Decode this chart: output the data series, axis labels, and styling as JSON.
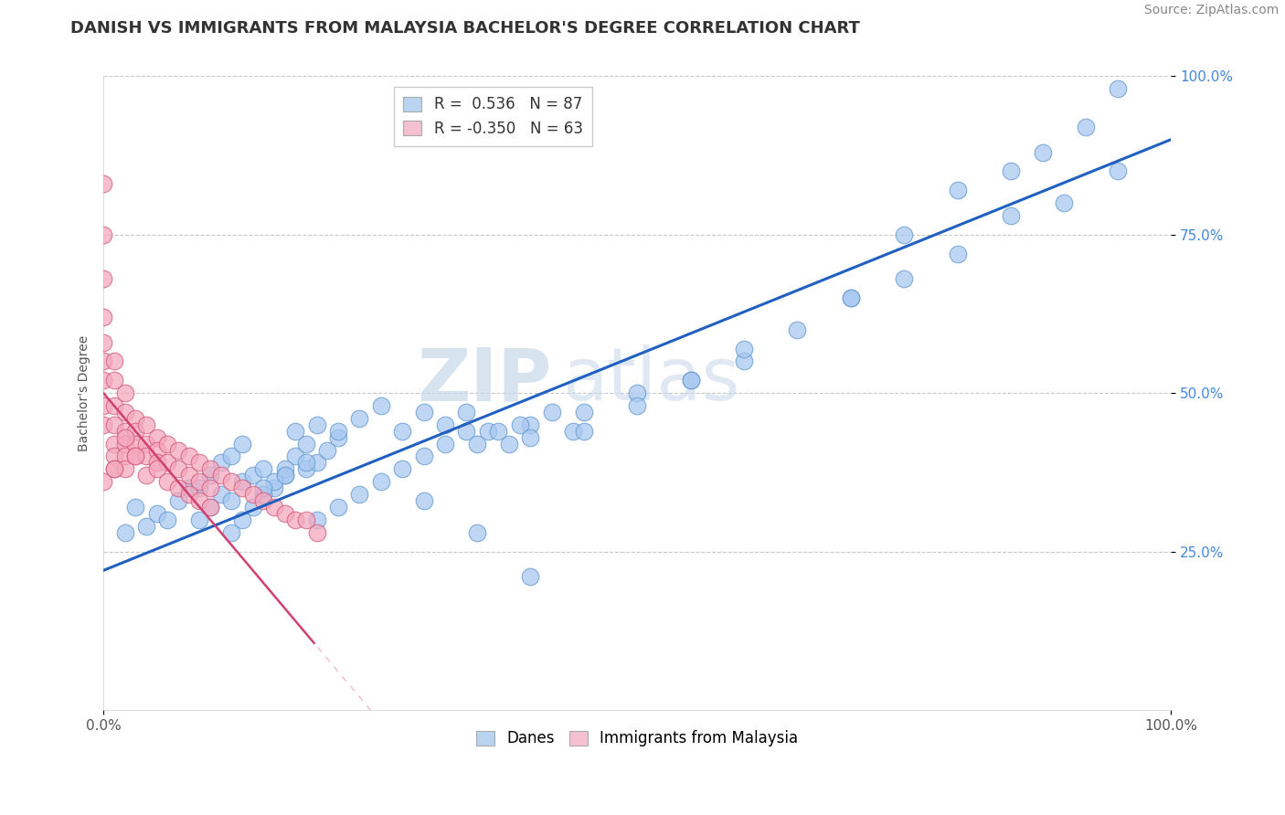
{
  "title": "DANISH VS IMMIGRANTS FROM MALAYSIA BACHELOR'S DEGREE CORRELATION CHART",
  "source": "Source: ZipAtlas.com",
  "ylabel": "Bachelor's Degree",
  "xlim": [
    0.0,
    1.0
  ],
  "ylim": [
    0.0,
    1.0
  ],
  "ytick_labels": [
    "25.0%",
    "50.0%",
    "75.0%",
    "100.0%"
  ],
  "ytick_positions": [
    0.25,
    0.5,
    0.75,
    1.0
  ],
  "danes_color": "#a8c8f0",
  "immigrants_color": "#f5a8be",
  "danes_edge_color": "#6098d0",
  "immigrants_edge_color": "#d05878",
  "regression_danes_color": "#2060c0",
  "regression_immigrants_color": "#d04070",
  "danes_R": 0.536,
  "danes_N": 87,
  "immigrants_R": -0.35,
  "immigrants_N": 63,
  "danes_scatter_x": [
    0.02,
    0.03,
    0.04,
    0.05,
    0.06,
    0.07,
    0.08,
    0.09,
    0.1,
    0.11,
    0.12,
    0.13,
    0.14,
    0.15,
    0.16,
    0.17,
    0.18,
    0.19,
    0.2,
    0.21,
    0.22,
    0.12,
    0.13,
    0.14,
    0.15,
    0.16,
    0.17,
    0.09,
    0.1,
    0.11,
    0.12,
    0.13,
    0.18,
    0.19,
    0.2,
    0.22,
    0.24,
    0.26,
    0.28,
    0.3,
    0.32,
    0.34,
    0.36,
    0.38,
    0.4,
    0.42,
    0.44,
    0.3,
    0.32,
    0.34,
    0.2,
    0.22,
    0.24,
    0.26,
    0.28,
    0.15,
    0.17,
    0.19,
    0.35,
    0.37,
    0.39,
    0.45,
    0.5,
    0.55,
    0.6,
    0.65,
    0.7,
    0.75,
    0.8,
    0.85,
    0.9,
    0.95,
    0.5,
    0.4,
    0.45,
    0.55,
    0.6,
    0.7,
    0.75,
    0.8,
    0.85,
    0.88,
    0.92,
    0.95,
    0.3,
    0.35,
    0.4
  ],
  "danes_scatter_y": [
    0.28,
    0.32,
    0.29,
    0.31,
    0.3,
    0.33,
    0.35,
    0.3,
    0.32,
    0.34,
    0.33,
    0.36,
    0.37,
    0.38,
    0.35,
    0.37,
    0.4,
    0.38,
    0.39,
    0.41,
    0.43,
    0.28,
    0.3,
    0.32,
    0.34,
    0.36,
    0.38,
    0.35,
    0.37,
    0.39,
    0.4,
    0.42,
    0.44,
    0.42,
    0.45,
    0.44,
    0.46,
    0.48,
    0.44,
    0.47,
    0.45,
    0.47,
    0.44,
    0.42,
    0.45,
    0.47,
    0.44,
    0.4,
    0.42,
    0.44,
    0.3,
    0.32,
    0.34,
    0.36,
    0.38,
    0.35,
    0.37,
    0.39,
    0.42,
    0.44,
    0.45,
    0.47,
    0.5,
    0.52,
    0.55,
    0.6,
    0.65,
    0.68,
    0.72,
    0.78,
    0.8,
    0.85,
    0.48,
    0.43,
    0.44,
    0.52,
    0.57,
    0.65,
    0.75,
    0.82,
    0.85,
    0.88,
    0.92,
    0.98,
    0.33,
    0.28,
    0.21
  ],
  "immigrants_scatter_x": [
    0.0,
    0.0,
    0.0,
    0.0,
    0.0,
    0.0,
    0.0,
    0.0,
    0.0,
    0.01,
    0.01,
    0.01,
    0.01,
    0.01,
    0.01,
    0.01,
    0.02,
    0.02,
    0.02,
    0.02,
    0.02,
    0.02,
    0.03,
    0.03,
    0.03,
    0.03,
    0.04,
    0.04,
    0.04,
    0.05,
    0.05,
    0.05,
    0.06,
    0.06,
    0.07,
    0.07,
    0.08,
    0.08,
    0.09,
    0.09,
    0.1,
    0.1,
    0.11,
    0.12,
    0.13,
    0.14,
    0.15,
    0.16,
    0.17,
    0.18,
    0.19,
    0.2,
    0.0,
    0.01,
    0.02,
    0.03,
    0.04,
    0.05,
    0.06,
    0.07,
    0.08,
    0.09,
    0.1
  ],
  "immigrants_scatter_y": [
    0.83,
    0.75,
    0.68,
    0.62,
    0.58,
    0.55,
    0.52,
    0.48,
    0.45,
    0.55,
    0.52,
    0.48,
    0.45,
    0.42,
    0.4,
    0.38,
    0.5,
    0.47,
    0.44,
    0.42,
    0.4,
    0.38,
    0.46,
    0.44,
    0.42,
    0.4,
    0.45,
    0.42,
    0.4,
    0.43,
    0.41,
    0.39,
    0.42,
    0.39,
    0.41,
    0.38,
    0.4,
    0.37,
    0.39,
    0.36,
    0.38,
    0.35,
    0.37,
    0.36,
    0.35,
    0.34,
    0.33,
    0.32,
    0.31,
    0.3,
    0.3,
    0.28,
    0.36,
    0.38,
    0.43,
    0.4,
    0.37,
    0.38,
    0.36,
    0.35,
    0.34,
    0.33,
    0.32
  ],
  "watermark_zip": "ZIP",
  "watermark_atlas": "atlas",
  "legend_box_color_danes": "#b8d4f0",
  "legend_box_color_immigrants": "#f5c0d0",
  "background_color": "#ffffff",
  "grid_color": "#c8c8c8",
  "title_fontsize": 13,
  "axis_label_fontsize": 10,
  "tick_fontsize": 11,
  "legend_fontsize": 12,
  "source_fontsize": 10
}
